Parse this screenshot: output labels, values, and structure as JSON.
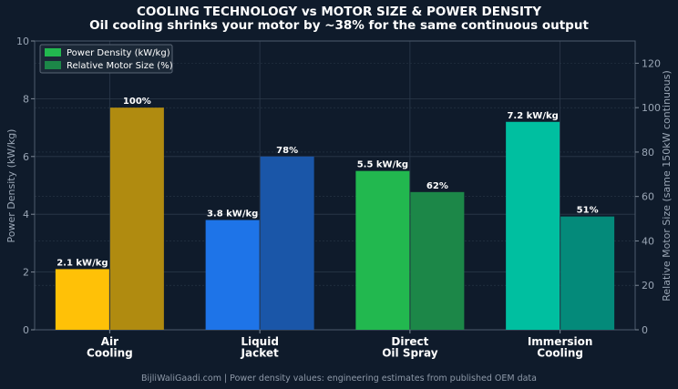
{
  "chart_data": {
    "type": "bar",
    "title": "COOLING TECHNOLOGY vs MOTOR SIZE & POWER DENSITY",
    "subtitle": "Oil cooling shrinks your motor by ~38% for the same continuous output",
    "categories": [
      [
        "Air",
        "Cooling"
      ],
      [
        "Liquid",
        "Jacket"
      ],
      [
        "Direct",
        "Oil Spray"
      ],
      [
        "Immersion",
        "Cooling"
      ]
    ],
    "ylabel_left": "Power Density (kW/kg)",
    "ylabel_right": "Relative Motor Size (same 150kW continuous)",
    "ylim_left": [
      0,
      10
    ],
    "ylim_right": [
      0,
      130
    ],
    "yticks_left": [
      0,
      2,
      4,
      6,
      8,
      10
    ],
    "yticks_right": [
      0,
      20,
      40,
      60,
      80,
      100,
      120
    ],
    "grid": true,
    "legend_placement": "top-left",
    "series": [
      {
        "name": "Power Density (kW/kg)",
        "axis": "left",
        "values": [
          2.1,
          3.8,
          5.5,
          7.2
        ],
        "labels": [
          "2.1 kW/kg",
          "3.8 kW/kg",
          "5.5 kW/kg",
          "7.2 kW/kg"
        ],
        "colors": [
          "#ffc107",
          "#1e74e8",
          "#22b84f",
          "#00bfa0"
        ],
        "legend_color": "#22b84f"
      },
      {
        "name": "Relative Motor Size (%)",
        "axis": "right",
        "values": [
          100,
          78,
          62,
          51
        ],
        "labels": [
          "100%",
          "78%",
          "62%",
          "51%"
        ],
        "colors": [
          "#b08b10",
          "#1a56a8",
          "#1c8748",
          "#048a7a"
        ],
        "legend_color": "#1c8748"
      }
    ],
    "footer": "BijliWaliGaadi.com | Power density values: engineering estimates from published OEM data"
  }
}
